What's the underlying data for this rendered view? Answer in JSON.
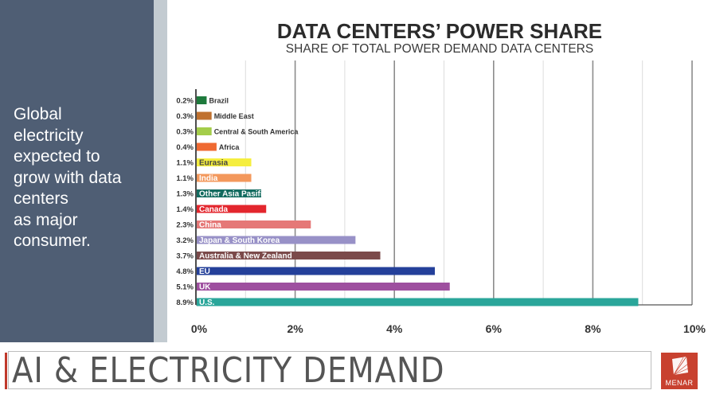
{
  "side_panel": {
    "lines": [
      "Global",
      "electricity",
      "expected to",
      "grow with data",
      "centers",
      "as major",
      "consumer."
    ]
  },
  "footer": {
    "title": "AI & ELECTRICITY DEMAND",
    "logo_text": "MENAR"
  },
  "colors": {
    "side_panel": "#4f5e74",
    "logo": "#c8412f"
  },
  "chart_data": {
    "type": "bar",
    "orientation": "horizontal",
    "title": "DATA CENTERS’ POWER SHARE",
    "subtitle": "SHARE OF TOTAL POWER DEMAND DATA CENTERS",
    "xlabel": "",
    "ylabel": "",
    "xlim": [
      0,
      10
    ],
    "xticks": [
      0,
      2,
      4,
      6,
      8,
      10
    ],
    "xtick_labels": [
      "0%",
      "2%",
      "4%",
      "6%",
      "8%",
      "10%"
    ],
    "grid": true,
    "categories": [
      "Brazil",
      "Middle East",
      "Central & South America",
      "Africa",
      "Eurasia",
      "India",
      "Other Asia Pasific",
      "Canada",
      "China",
      "Japan & South Korea",
      "Australia & New Zealand",
      "EU",
      "UK",
      "U.S."
    ],
    "values": [
      0.2,
      0.3,
      0.3,
      0.4,
      1.1,
      1.1,
      1.3,
      1.4,
      2.3,
      3.2,
      3.7,
      4.8,
      5.1,
      8.9
    ],
    "value_labels": [
      "0.2%",
      "0.3%",
      "0.3%",
      "0.4%",
      "1.1%",
      "1.1%",
      "1.3%",
      "1.4%",
      "2.3%",
      "3.2%",
      "3.7%",
      "4.8%",
      "5.1%",
      "8.9%"
    ],
    "bar_colors": [
      "#1e7a3c",
      "#c0712f",
      "#a4cd4a",
      "#ef6a32",
      "#f5ee3f",
      "#f3985c",
      "#136b5f",
      "#e3262d",
      "#e57877",
      "#9891c7",
      "#7b4a4a",
      "#24409a",
      "#9e4f9f",
      "#2aa69a"
    ],
    "label_inside": [
      false,
      false,
      false,
      false,
      true,
      true,
      true,
      true,
      true,
      true,
      true,
      true,
      true,
      true
    ],
    "label_colors": [
      "#333333",
      "#333333",
      "#333333",
      "#333333",
      "#444444",
      "#ffffff",
      "#ffffff",
      "#ffffff",
      "#ffffff",
      "#ffffff",
      "#ffffff",
      "#ffffff",
      "#ffffff",
      "#ffffff"
    ]
  }
}
